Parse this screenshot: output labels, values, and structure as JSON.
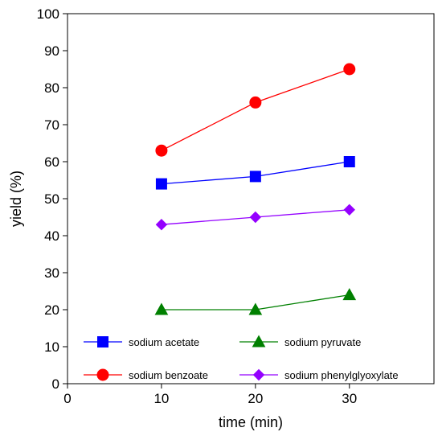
{
  "chart_data": {
    "type": "line",
    "xlabel": "time (min)",
    "ylabel": "yield (%)",
    "xlim": [
      0,
      39
    ],
    "ylim": [
      0,
      100
    ],
    "xticks": [
      0,
      10,
      20,
      30
    ],
    "yticks": [
      0,
      10,
      20,
      30,
      40,
      50,
      60,
      70,
      80,
      90,
      100
    ],
    "grid": false,
    "legend_position": "bottom",
    "series": [
      {
        "name": "sodium acetate",
        "color": "#0000ff",
        "marker": "square",
        "x": [
          10,
          20,
          30
        ],
        "y": [
          54,
          56,
          60
        ]
      },
      {
        "name": "sodium benzoate",
        "color": "#ff0000",
        "marker": "circle",
        "x": [
          10,
          20,
          30
        ],
        "y": [
          63,
          76,
          85
        ]
      },
      {
        "name": "sodium pyruvate",
        "color": "#008000",
        "marker": "triangle",
        "x": [
          10,
          20,
          30
        ],
        "y": [
          20,
          20,
          24
        ]
      },
      {
        "name": "sodium phenylglyoxylate",
        "color": "#9400ff",
        "marker": "diamond",
        "x": [
          10,
          20,
          30
        ],
        "y": [
          43,
          45,
          47
        ]
      }
    ]
  }
}
